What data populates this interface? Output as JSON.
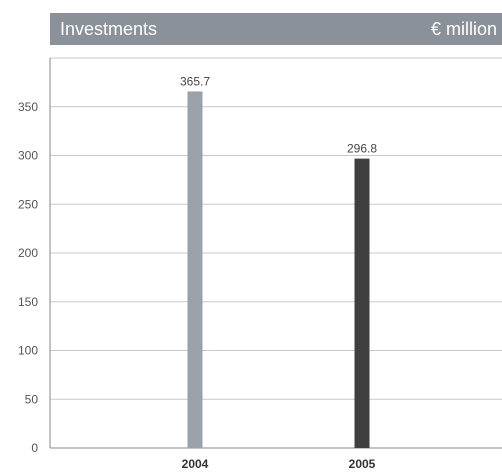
{
  "header": {
    "title": "Investments",
    "unit": "€ million"
  },
  "colors": {
    "header_bg": "#8a9199",
    "grid": "#c8c8c8",
    "axis": "#888888"
  },
  "chart_data": {
    "type": "bar",
    "title": "Investments",
    "ylabel": "€ million",
    "xlabel": "",
    "categories": [
      "2004",
      "2005"
    ],
    "values": [
      365.7,
      296.8
    ],
    "data_labels": [
      "365.7",
      "296.8"
    ],
    "bar_colors": [
      "#9aa2a9",
      "#3f3f3f"
    ],
    "ylim": [
      0,
      400
    ],
    "yticks": [
      0,
      50,
      100,
      150,
      200,
      250,
      300,
      350
    ],
    "ytick_labels": [
      "0",
      "50",
      "100",
      "150",
      "200",
      "250",
      "300",
      "350"
    ],
    "grid": true,
    "legend": "none"
  }
}
